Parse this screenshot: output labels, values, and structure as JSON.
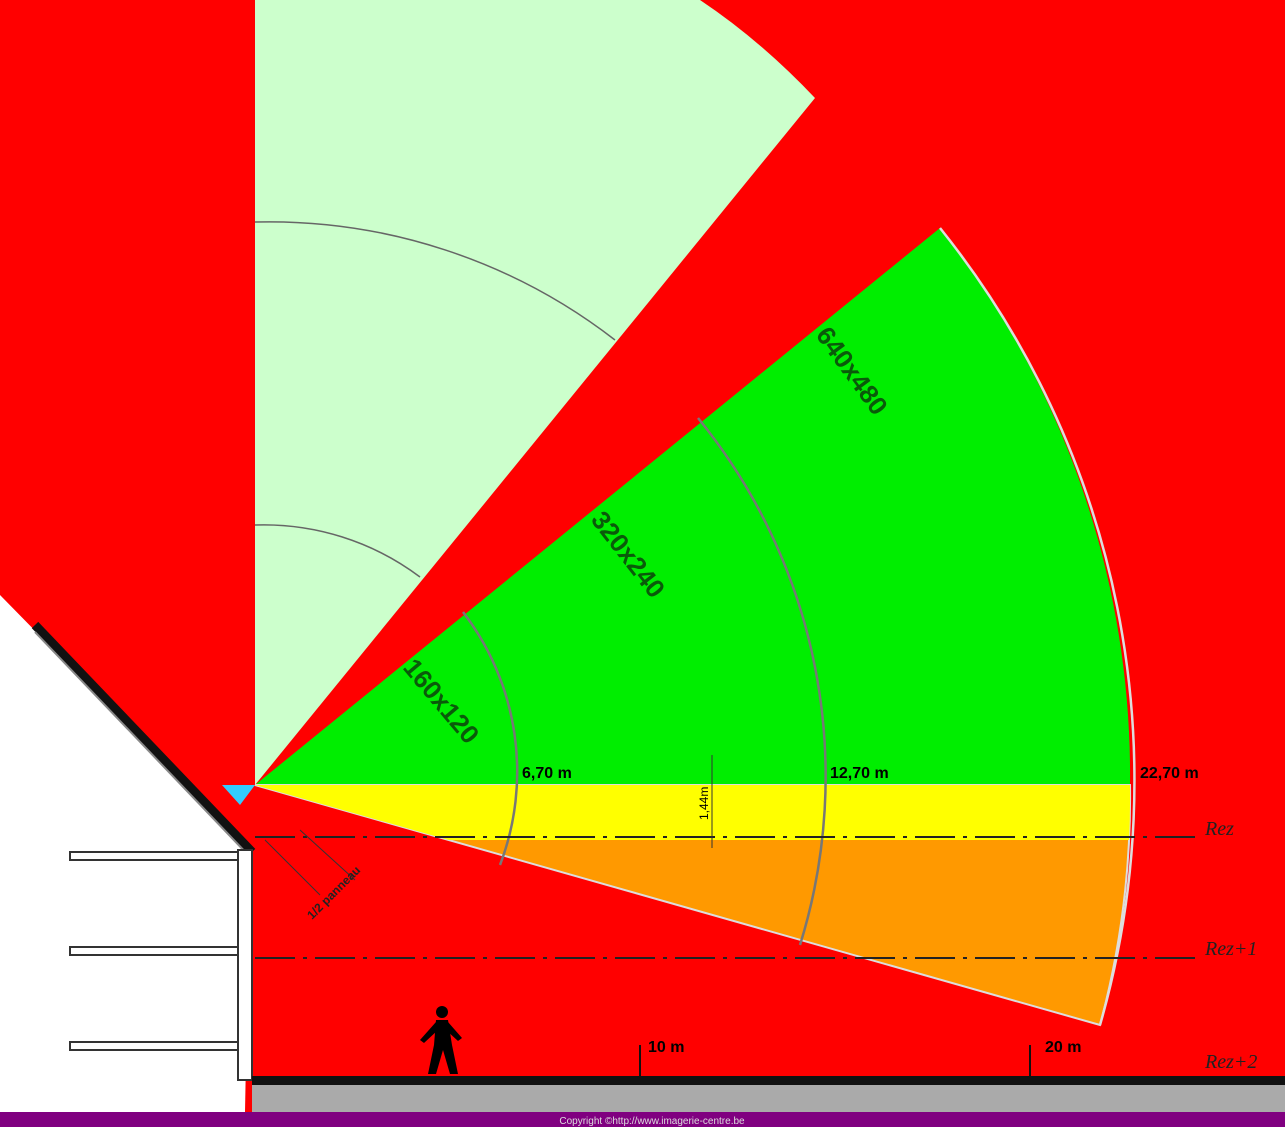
{
  "resolutions": [
    "160x120",
    "320x240",
    "640x480"
  ],
  "distances": [
    "6,70 m",
    "12,70 m",
    "22,70 m"
  ],
  "height_label": "1,44m",
  "floors": [
    "Rez",
    "Rez+1",
    "Rez+2"
  ],
  "panel_label": "1/2 panneau",
  "scale": [
    "10 m",
    "20 m"
  ],
  "footer": "Copyright ©http://www.imagerie-centre.be"
}
